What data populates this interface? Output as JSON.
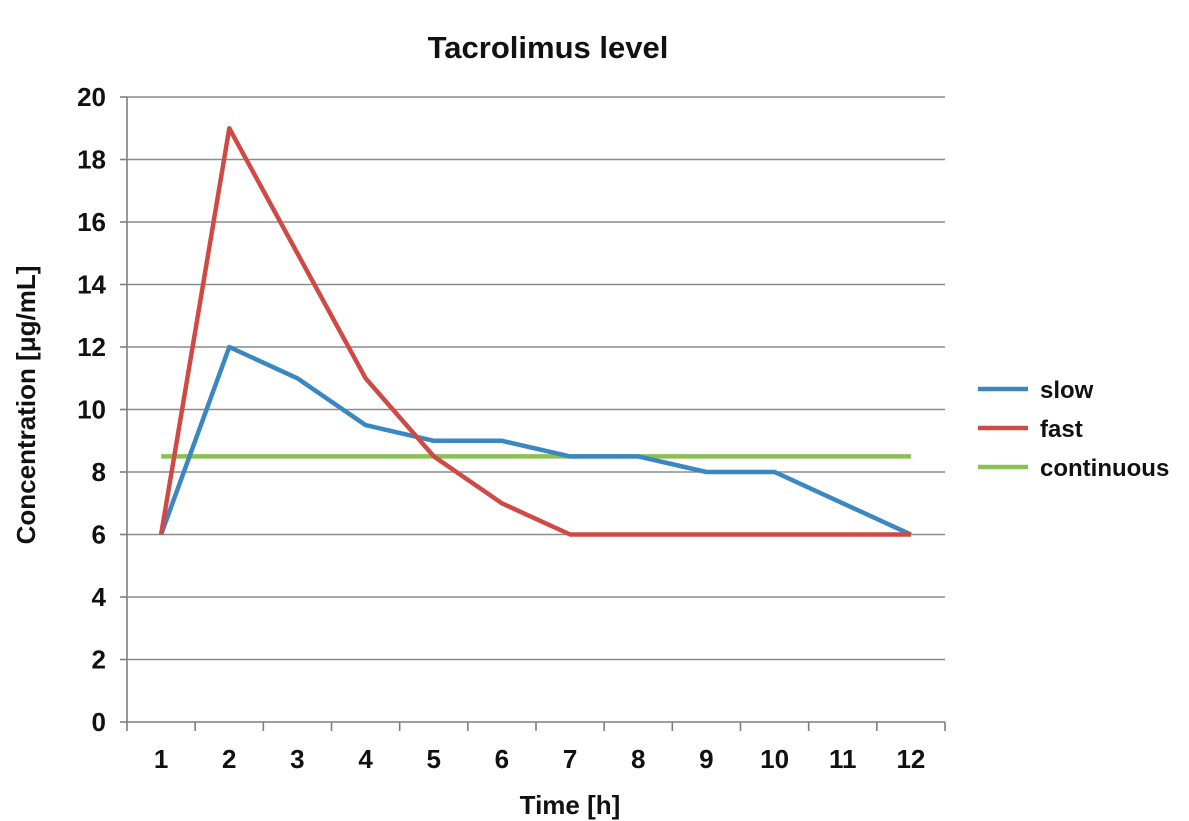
{
  "chart_data": {
    "type": "line",
    "title": "Tacrolimus level",
    "xlabel": "Time [h]",
    "ylabel": "Concentration [μg/mL]",
    "categories": [
      "1",
      "2",
      "3",
      "4",
      "5",
      "6",
      "7",
      "8",
      "9",
      "10",
      "11",
      "12"
    ],
    "x": [
      1,
      2,
      3,
      4,
      5,
      6,
      7,
      8,
      9,
      10,
      11,
      12
    ],
    "ylim": [
      0,
      20
    ],
    "yticks": [
      "0",
      "2",
      "4",
      "6",
      "8",
      "10",
      "12",
      "14",
      "16",
      "18",
      "20"
    ],
    "grid": "horizontal",
    "legend_position": "right",
    "series": [
      {
        "name": "slow",
        "color": "#3a87c1",
        "values": [
          6,
          12,
          11,
          9.5,
          9,
          9,
          8.5,
          8.5,
          8,
          8,
          7,
          6
        ]
      },
      {
        "name": "fast",
        "color": "#cf4a45",
        "values": [
          6,
          19,
          15,
          11,
          8.5,
          7,
          6,
          6,
          6,
          6,
          6,
          6
        ]
      },
      {
        "name": "continuous",
        "color": "#8cc152",
        "values": [
          8.5,
          8.5,
          8.5,
          8.5,
          8.5,
          8.5,
          8.5,
          8.5,
          8.5,
          8.5,
          8.5,
          8.5
        ]
      }
    ]
  }
}
